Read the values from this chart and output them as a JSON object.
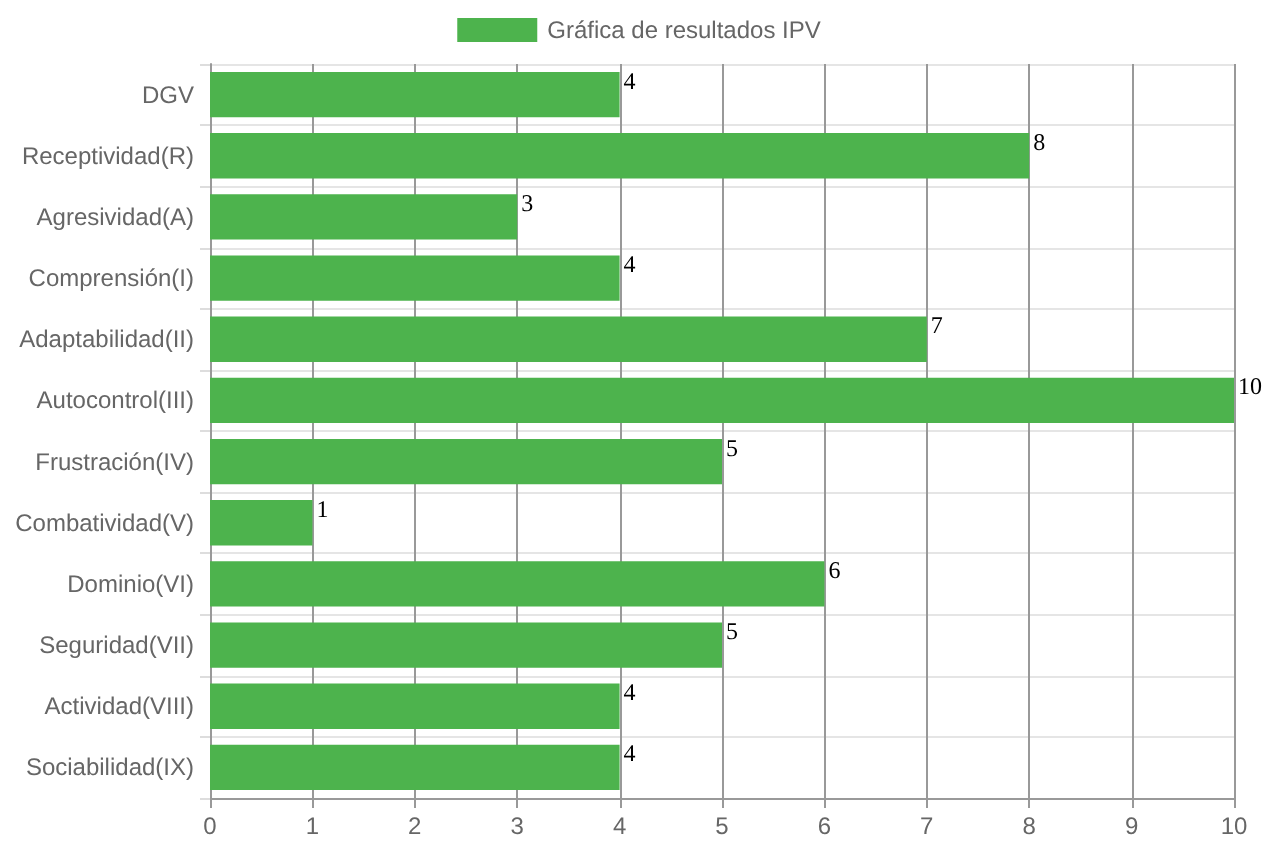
{
  "chart_data": {
    "type": "bar",
    "orientation": "horizontal",
    "categories": [
      "DGV",
      "Receptividad(R)",
      "Agresividad(A)",
      "Comprensión(I)",
      "Adaptabilidad(II)",
      "Autocontrol(III)",
      "Frustración(IV)",
      "Combatividad(V)",
      "Dominio(VI)",
      "Seguridad(VII)",
      "Actividad(VIII)",
      "Sociabilidad(IX)"
    ],
    "series": [
      {
        "name": "Gráfica de resultados IPV",
        "color": "#4db34d",
        "values": [
          4,
          8,
          3,
          4,
          7,
          10,
          5,
          1,
          6,
          5,
          4,
          4
        ]
      }
    ],
    "xlim": [
      0,
      10
    ],
    "xticks": [
      0,
      1,
      2,
      3,
      4,
      5,
      6,
      7,
      8,
      9,
      10
    ],
    "grid": true,
    "legend": "top",
    "data_labels": true
  }
}
